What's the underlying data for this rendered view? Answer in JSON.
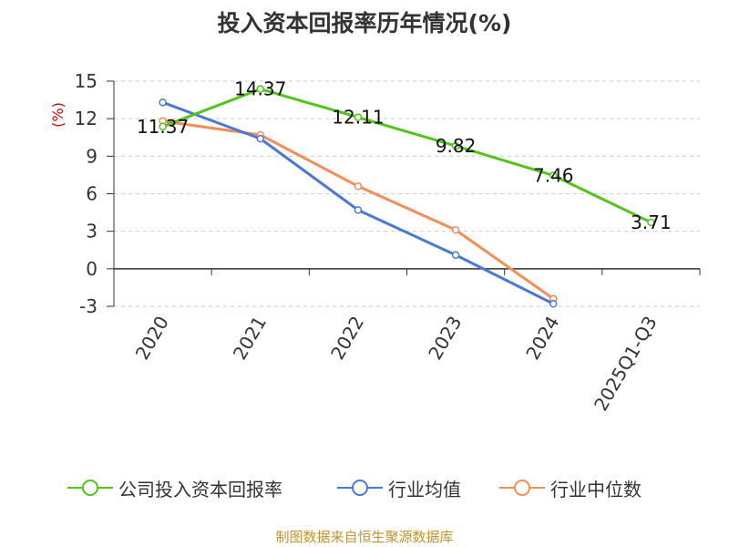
{
  "chart_data": {
    "type": "line",
    "title": "投入资本回报率历年情况(%)",
    "ylabel": "(%)",
    "xlabel": "",
    "ylim": [
      -3,
      15
    ],
    "yticks": [
      15,
      12,
      9,
      6,
      3,
      0,
      -3
    ],
    "categories": [
      "2020",
      "2021",
      "2022",
      "2023",
      "2024",
      "2025Q1-Q3"
    ],
    "grid": true,
    "legend_position": "bottom",
    "series": [
      {
        "name": "公司投入资本回报率",
        "color": "#52c41a",
        "values": [
          11.37,
          14.37,
          12.11,
          9.82,
          7.46,
          3.71
        ],
        "labels": [
          "11.37",
          "14.37",
          "12.11",
          "9.82",
          "7.46",
          "3.71"
        ]
      },
      {
        "name": "行业均值",
        "color": "#4a78d9",
        "values": [
          13.3,
          10.4,
          4.7,
          1.1,
          -2.8,
          null
        ]
      },
      {
        "name": "行业中位数",
        "color": "#f58d57",
        "values": [
          11.8,
          10.7,
          6.6,
          3.1,
          -2.4,
          null
        ]
      }
    ]
  },
  "source": "制图数据来自恒生聚源数据库"
}
